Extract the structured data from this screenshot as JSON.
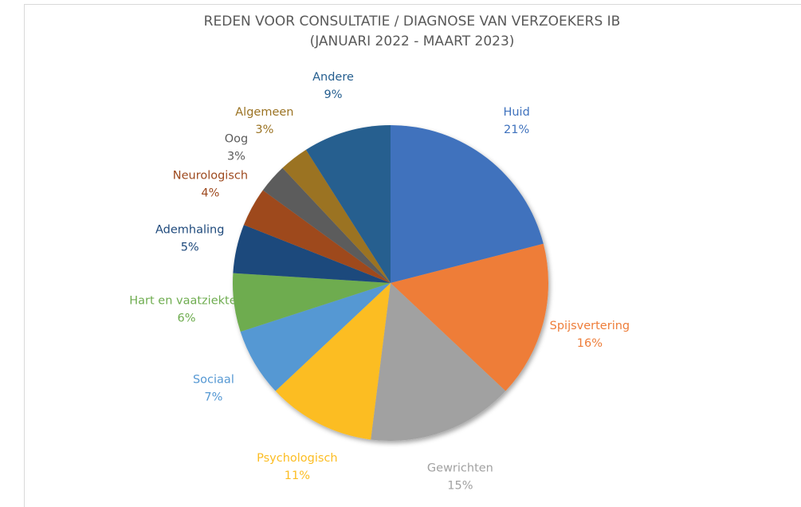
{
  "chart_data": {
    "type": "pie",
    "title": "REDEN VOOR CONSULTATIE / DIAGNOSE VAN VERZOEKERS IB",
    "subtitle": "(JANUARI 2022 - MAART 2023)",
    "categories": [
      "Huid",
      "Spijsvertering",
      "Gewrichten",
      "Psychologisch",
      "Sociaal",
      "Hart en vaatziekten",
      "Ademhaling",
      "Neurologisch",
      "Oog",
      "Algemeen",
      "Andere"
    ],
    "values": [
      21,
      16,
      15,
      11,
      7,
      6,
      5,
      4,
      3,
      3,
      9
    ],
    "value_labels": [
      "21%",
      "16%",
      "15%",
      "11%",
      "7%",
      "6%",
      "5%",
      "4%",
      "3%",
      "3%",
      "9%"
    ],
    "colors": [
      "#3f72bd",
      "#ee7d39",
      "#a1a1a1",
      "#fcbd22",
      "#5598d3",
      "#6eac4f",
      "#1f4a7c",
      "#9e4a1f",
      "#5c5c5c",
      "#9b7323",
      "#255e8f"
    ]
  }
}
